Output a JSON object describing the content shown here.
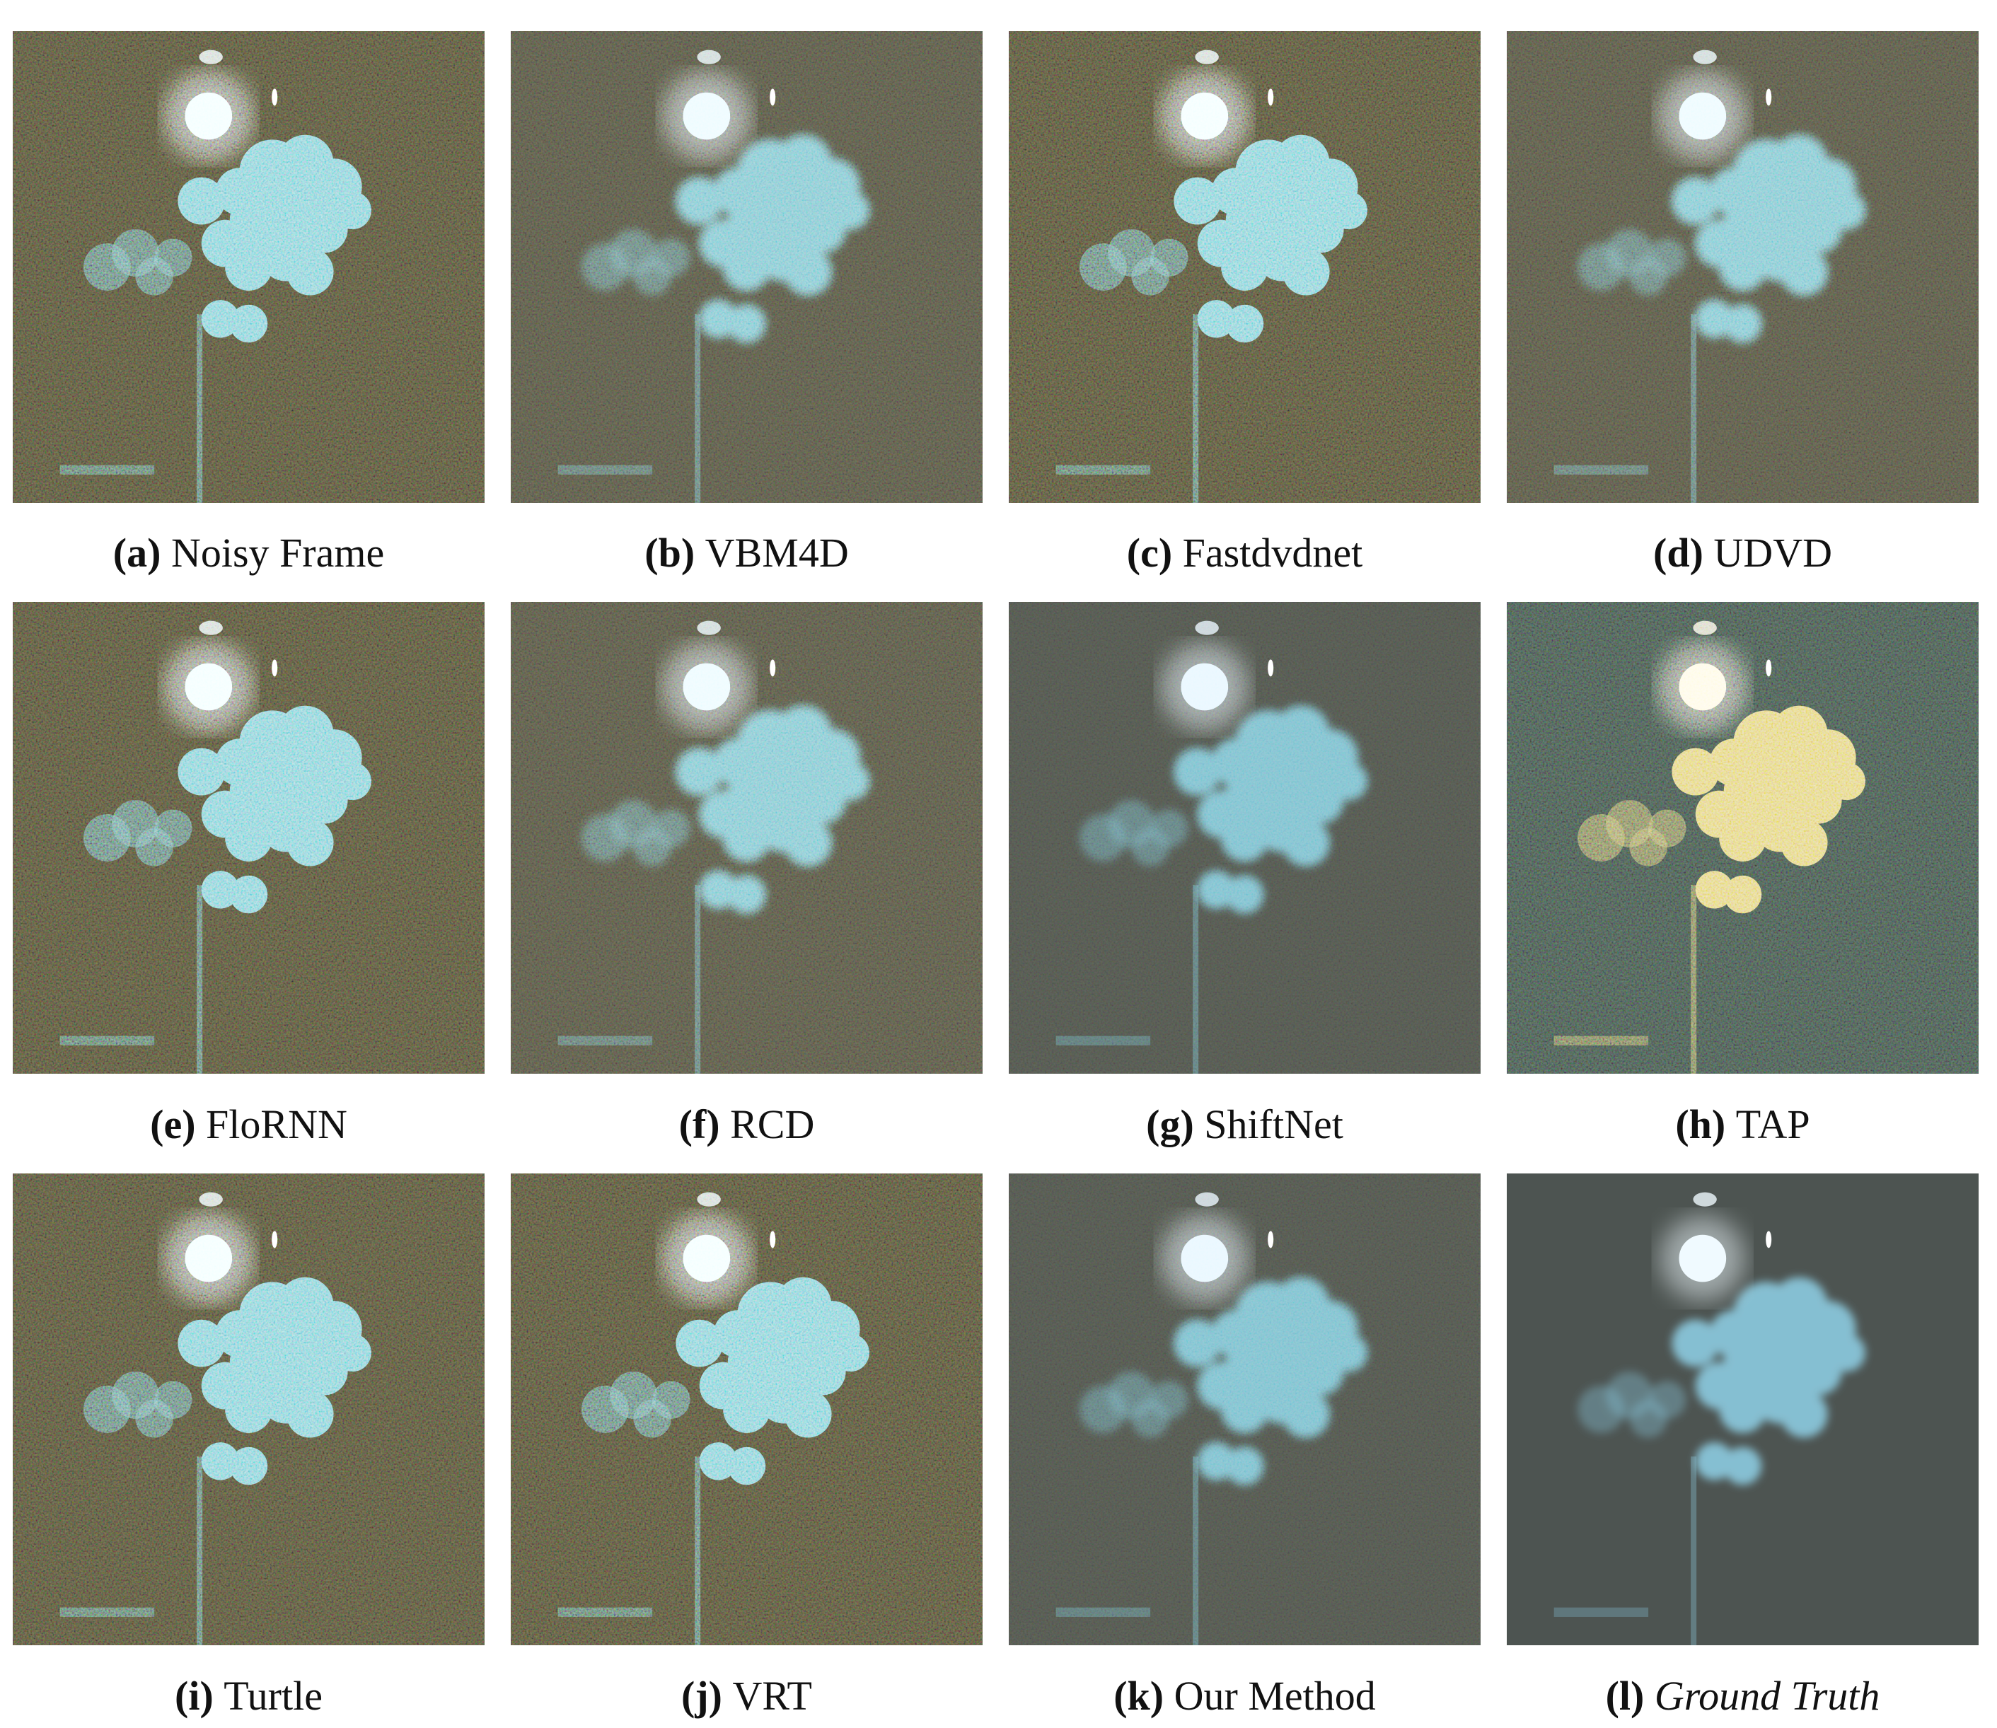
{
  "figure": {
    "panels": [
      {
        "label": "(a)",
        "name": "Noisy Frame"
      },
      {
        "label": "(b)",
        "name": "VBM4D"
      },
      {
        "label": "(c)",
        "name": "Fastdvdnet"
      },
      {
        "label": "(d)",
        "name": "UDVD"
      },
      {
        "label": "(e)",
        "name": "FloRNN"
      },
      {
        "label": "(f)",
        "name": "RCD"
      },
      {
        "label": "(g)",
        "name": "ShiftNet"
      },
      {
        "label": "(h)",
        "name": "TAP"
      },
      {
        "label": "(i)",
        "name": "Turtle"
      },
      {
        "label": "(j)",
        "name": "VRT"
      },
      {
        "label": "(k)",
        "name": "Our Method"
      },
      {
        "label": "(l)",
        "name": "Ground Truth"
      }
    ]
  }
}
